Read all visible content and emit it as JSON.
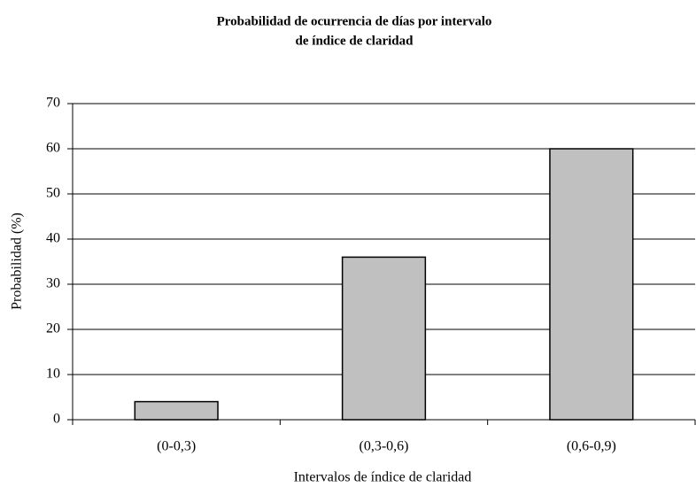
{
  "chart_data": {
    "type": "bar",
    "title": [
      "Probabilidad de ocurrencia de días por intervalo",
      "de índice de claridad"
    ],
    "x_label": "Intervalos de índice de claridad",
    "y_label": "Probabilidad (%)",
    "categories": [
      "(0-0,3)",
      "(0,3-0,6)",
      "(0,6-0,9)"
    ],
    "values": [
      4,
      36,
      60
    ],
    "color": "#c0c0c0",
    "ylim": [
      0,
      70
    ],
    "yticks": [
      0,
      10,
      20,
      30,
      40,
      50,
      60,
      70
    ],
    "grid": true
  }
}
